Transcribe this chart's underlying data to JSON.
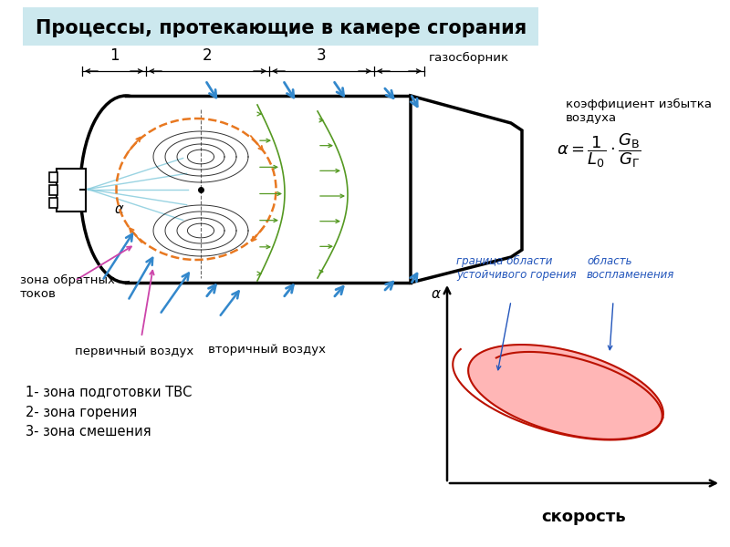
{
  "title": "Процессы, протекающие в камере сгорания",
  "title_bg": "#cce8ee",
  "bg_color": "#ffffff",
  "label_zona_obr": "зона обратных\nтоков",
  "label_perv": "первичный воздух",
  "label_vtor": "вторичный воздух",
  "label_gazo": "газосборник",
  "label_koef": "коэффициент избытка\nвоздуха",
  "label_zone1": "1- зона подготовки ТВС",
  "label_zone2": "2- зона горения",
  "label_zone3": "3- зона смешения",
  "label_granica": "граница области\nустойчивого горения",
  "label_oblast": "область\nвоспламенения",
  "label_skorost": "скорость",
  "label_alpha_ax": "α",
  "text_color_blue": "#2255bb",
  "arrow_color": "#3388cc",
  "orange_color": "#e87820",
  "pink_color": "#cc44aa",
  "green_color": "#559922",
  "dark_red": "#bb1100",
  "pink_fill": "#ffaaaa"
}
